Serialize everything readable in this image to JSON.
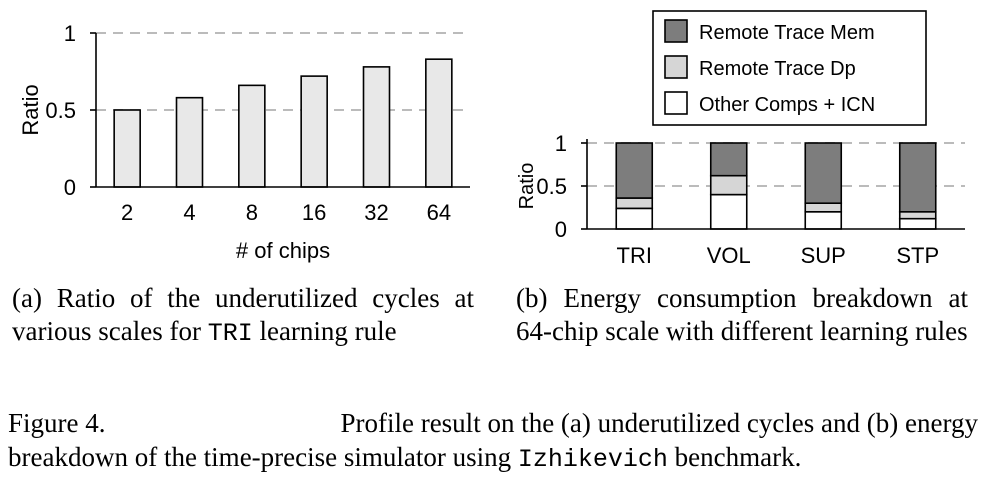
{
  "colors": {
    "bar_fill": "#e8e8e8",
    "remote_trace_mem": "#7d7d7d",
    "remote_trace_dp": "#d6d6d6",
    "other_comps_icn": "#ffffff",
    "gridline": "#bbbbbb"
  },
  "chart_data": [
    {
      "id": "a",
      "type": "bar",
      "categories": [
        "2",
        "4",
        "8",
        "16",
        "32",
        "64"
      ],
      "values": [
        0.5,
        0.58,
        0.66,
        0.72,
        0.78,
        0.83
      ],
      "xlabel": "# of chips",
      "ylabel": "Ratio",
      "ylim": [
        0,
        1
      ],
      "yticks": [
        "0",
        "0.5",
        "1"
      ],
      "grid": true
    },
    {
      "id": "b",
      "type": "bar",
      "stacked": true,
      "categories": [
        "TRI",
        "VOL",
        "SUP",
        "STP"
      ],
      "series": [
        {
          "name": "Other Comps + ICN",
          "values": [
            0.24,
            0.4,
            0.2,
            0.12
          ]
        },
        {
          "name": "Remote Trace Dp",
          "values": [
            0.12,
            0.22,
            0.1,
            0.08
          ]
        },
        {
          "name": "Remote Trace Mem",
          "values": [
            0.64,
            0.38,
            0.7,
            0.8
          ]
        }
      ],
      "legend_order": [
        "Remote Trace Mem",
        "Remote Trace Dp",
        "Other Comps + ICN"
      ],
      "legend_position": "top",
      "ylabel": "Ratio",
      "ylim": [
        0,
        1
      ],
      "yticks": [
        "0",
        "0.5",
        "1"
      ],
      "grid": true
    }
  ],
  "captions": {
    "a_pre": "(a) Ratio of the underutilized cycles at various scales for ",
    "a_code": "TRI",
    "a_post": " learning rule",
    "b": "(b) Energy consumption breakdown at 64-chip scale with different learning rules"
  },
  "figure_caption": {
    "label": "Figure 4.",
    "line1": "Profile result on the (a) underutilized cycles and (b) energy",
    "line2_pre": "breakdown of the time-precise simulator using ",
    "line2_code": "Izhikevich",
    "line2_post": " benchmark."
  }
}
